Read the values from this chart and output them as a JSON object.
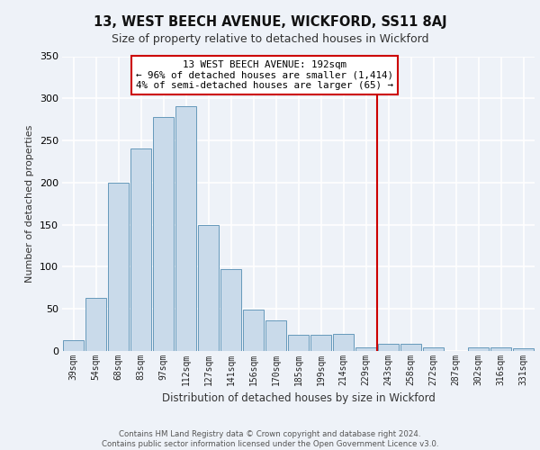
{
  "title1": "13, WEST BEECH AVENUE, WICKFORD, SS11 8AJ",
  "title2": "Size of property relative to detached houses in Wickford",
  "xlabel": "Distribution of detached houses by size in Wickford",
  "ylabel": "Number of detached properties",
  "categories": [
    "39sqm",
    "54sqm",
    "68sqm",
    "83sqm",
    "97sqm",
    "112sqm",
    "127sqm",
    "141sqm",
    "156sqm",
    "170sqm",
    "185sqm",
    "199sqm",
    "214sqm",
    "229sqm",
    "243sqm",
    "258sqm",
    "272sqm",
    "287sqm",
    "302sqm",
    "316sqm",
    "331sqm"
  ],
  "values": [
    13,
    63,
    200,
    240,
    278,
    291,
    150,
    97,
    49,
    36,
    19,
    19,
    20,
    4,
    9,
    9,
    4,
    0,
    4,
    4,
    3
  ],
  "bar_color": "#c9daea",
  "bar_edge_color": "#6699bb",
  "bg_color": "#eef2f8",
  "grid_color": "#ffffff",
  "vline_x": 13.5,
  "vline_color": "#cc0000",
  "annotation_text": "13 WEST BEECH AVENUE: 192sqm\n← 96% of detached houses are smaller (1,414)\n4% of semi-detached houses are larger (65) →",
  "annotation_box_color": "#ffffff",
  "annotation_box_edge": "#cc0000",
  "footer": "Contains HM Land Registry data © Crown copyright and database right 2024.\nContains public sector information licensed under the Open Government Licence v3.0.",
  "ylim": [
    0,
    350
  ],
  "yticks": [
    0,
    50,
    100,
    150,
    200,
    250,
    300,
    350
  ],
  "title1_fontsize": 10.5,
  "title2_fontsize": 9
}
